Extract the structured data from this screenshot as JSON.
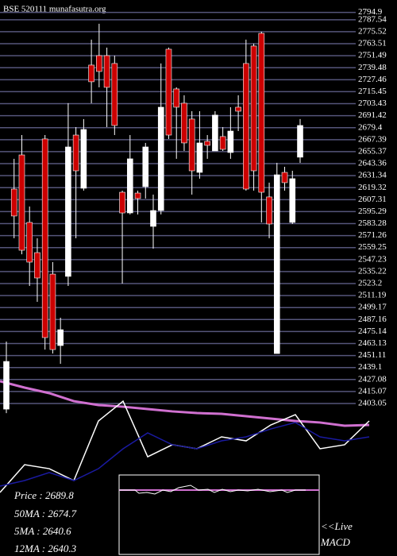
{
  "chart_data": {
    "type": "candlestick",
    "title": "BSE 520111 munafasutra.org",
    "ylim": [
      2393.5,
      2807.3
    ],
    "yticks": [
      2794.9,
      2787.54,
      2775.52,
      2763.51,
      2751.49,
      2739.48,
      2727.46,
      2715.45,
      2703.43,
      2691.42,
      2679.4,
      2667.39,
      2655.37,
      2643.36,
      2631.34,
      2619.32,
      2607.31,
      2595.29,
      2583.28,
      2571.26,
      2559.25,
      2547.23,
      2535.22,
      2523.2,
      2511.19,
      2499.17,
      2487.16,
      2475.14,
      2463.13,
      2451.11,
      2439.1,
      2427.08,
      2415.07,
      2403.05
    ],
    "grid": true,
    "up_color": "#ffffff",
    "down_color": "#cc0000",
    "open": [
      2397.4,
      2617.9,
      2652.1,
      2584.5,
      2554.2,
      2668.1,
      2532.7,
      2461.1,
      2530.4,
      2672.0,
      2618.7,
      2742.1,
      2751.6,
      2751.6,
      2743.7,
      2614.7,
      2594.0,
      2613.9,
      2620.3,
      2580.5,
      2596.4,
      2758.0,
      2718.2,
      2703.9,
      2688.0,
      2634.6,
      2665.7,
      2656.1,
      2670.5,
      2654.5,
      2699.9,
      2743.7,
      2761.2,
      2773.9,
      2610.0,
      2453.1,
      2634.6,
      2584.5,
      2649.8
    ],
    "high": [
      2465.1,
      2648.2,
      2672.0,
      2600.4,
      2568.6,
      2672.0,
      2544.7,
      2489.0,
      2703.9,
      2680.0,
      2688.0,
      2767.6,
      2783.5,
      2759.6,
      2751.6,
      2616.3,
      2672.0,
      2616.3,
      2664.1,
      2612.3,
      2743.7,
      2759.6,
      2719.8,
      2711.8,
      2695.9,
      2695.9,
      2672.0,
      2695.9,
      2680.0,
      2699.9,
      2711.8,
      2767.6,
      2763.6,
      2775.5,
      2624.3,
      2644.2,
      2640.2,
      2636.2,
      2688.0
    ],
    "low": [
      2393.4,
      2568.6,
      2552.6,
      2520.8,
      2504.9,
      2457.1,
      2453.1,
      2442.8,
      2520.8,
      2568.6,
      2616.3,
      2703.9,
      2719.8,
      2680.0,
      2672.0,
      2523.2,
      2592.4,
      2592.4,
      2608.4,
      2558.2,
      2592.4,
      2668.1,
      2648.2,
      2656.1,
      2612.3,
      2628.3,
      2648.2,
      2656.1,
      2656.1,
      2648.2,
      2676.0,
      2616.3,
      2616.3,
      2584.5,
      2568.6,
      2453.1,
      2616.3,
      2582.9,
      2644.2
    ],
    "close": [
      2445.2,
      2590.9,
      2556.6,
      2544.7,
      2528.8,
      2469.1,
      2457.1,
      2477.0,
      2660.1,
      2636.2,
      2677.6,
      2725.4,
      2735.7,
      2719.8,
      2681.6,
      2594.0,
      2648.2,
      2608.4,
      2660.1,
      2596.4,
      2699.9,
      2672.0,
      2699.9,
      2664.1,
      2636.2,
      2664.1,
      2661.7,
      2692.0,
      2657.7,
      2676.0,
      2695.9,
      2617.9,
      2636.2,
      2614.7,
      2582.9,
      2632.2,
      2624.3,
      2628.3,
      2681.6
    ],
    "indicator": {
      "ylim": [
        0,
        100
      ],
      "series": [
        {
          "color": "#d070d0",
          "values": [
            100,
            94.3,
            89.3,
            82.1,
            78.6,
            77.1,
            75,
            72.9,
            71.4,
            70.7,
            68.6,
            66.4,
            64.3,
            62.9,
            60,
            60.7
          ]
        },
        {
          "color": "#ffffff",
          "values": [
            0,
            25,
            21.4,
            10.7,
            64.3,
            82.1,
            32.1,
            42.9,
            39.3,
            50,
            46.4,
            60.7,
            70,
            39.3,
            42.9,
            64.3
          ]
        },
        {
          "color": "#1a1aa0",
          "values": [
            5.7,
            10.7,
            17.9,
            10.7,
            21.4,
            39.3,
            53.6,
            42.9,
            39.3,
            46.4,
            50,
            57.1,
            62.9,
            50,
            46.4,
            50
          ]
        }
      ]
    },
    "info": [
      "Price   : 2689.8",
      "50MA : 2674.7",
      "5MA : 2640.6",
      "12MA : 2640.3"
    ],
    "live": "<<Live",
    "macd": "MACD"
  }
}
